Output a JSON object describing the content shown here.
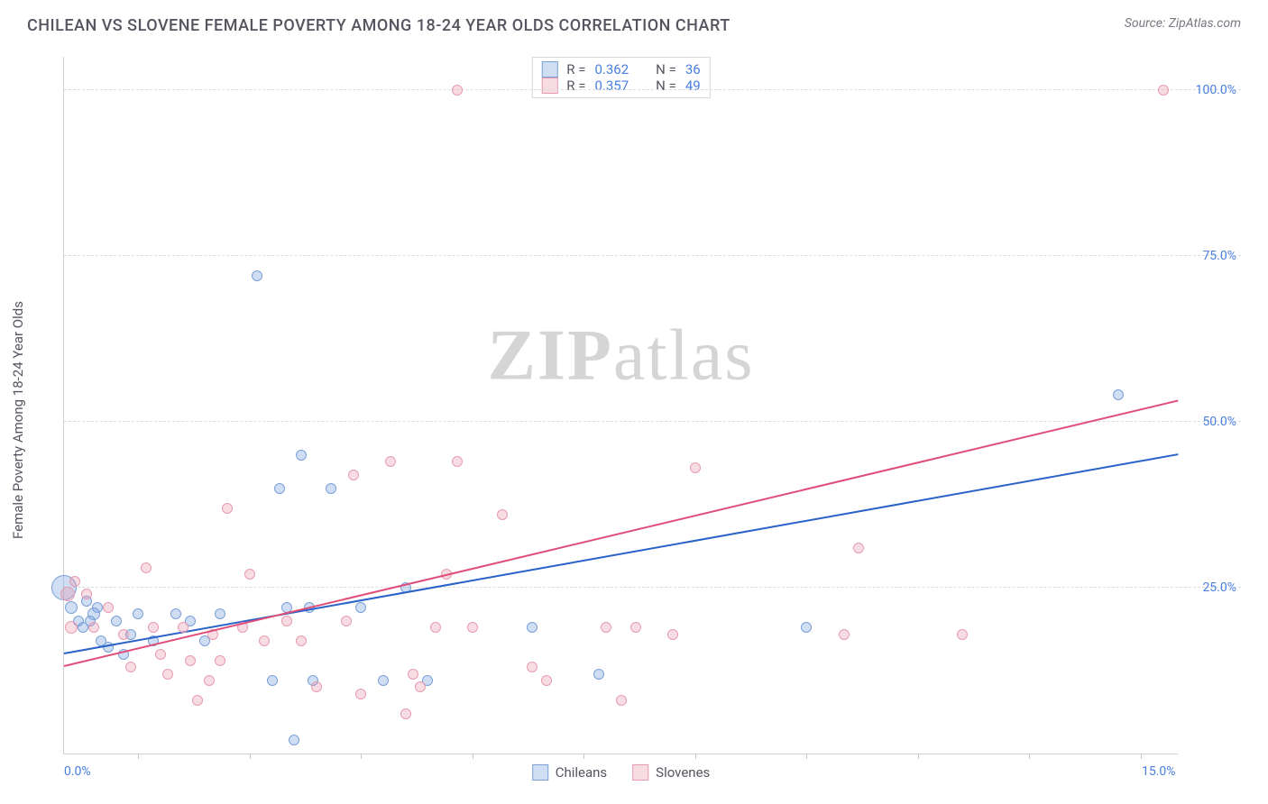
{
  "header": {
    "title": "CHILEAN VS SLOVENE FEMALE POVERTY AMONG 18-24 YEAR OLDS CORRELATION CHART",
    "source": "Source: ZipAtlas.com"
  },
  "chart": {
    "type": "scatter",
    "ylabel": "Female Poverty Among 18-24 Year Olds",
    "watermark_a": "ZIP",
    "watermark_b": "atlas",
    "background_color": "#ffffff",
    "grid_color": "#dcdcdc",
    "axis_color": "#d0d0d0",
    "xlim": [
      0,
      15
    ],
    "ylim": [
      0,
      105
    ],
    "x_ticks": [
      1,
      2.5,
      4,
      5.5,
      7,
      8.5,
      10,
      11.5,
      13,
      14.5
    ],
    "x_axis_labels": [
      {
        "x": 0,
        "text": "0.0%"
      },
      {
        "x": 15,
        "text": "15.0%"
      }
    ],
    "y_gridlines": [
      25,
      50,
      75,
      100
    ],
    "y_tick_labels": [
      "25.0%",
      "50.0%",
      "75.0%",
      "100.0%"
    ],
    "series": [
      {
        "name": "Chileans",
        "fill": "rgba(120,160,220,0.35)",
        "stroke": "#7aa0d8",
        "trend_color": "#2a62c7",
        "trend": {
          "x1": 0,
          "y1": 15,
          "x2": 15,
          "y2": 45
        },
        "points": [
          {
            "x": 0.0,
            "y": 25,
            "r": 14
          },
          {
            "x": 0.1,
            "y": 22,
            "r": 7
          },
          {
            "x": 0.2,
            "y": 20,
            "r": 6
          },
          {
            "x": 0.25,
            "y": 19,
            "r": 6
          },
          {
            "x": 0.3,
            "y": 23,
            "r": 6
          },
          {
            "x": 0.35,
            "y": 20,
            "r": 6
          },
          {
            "x": 0.4,
            "y": 21,
            "r": 7
          },
          {
            "x": 0.45,
            "y": 22,
            "r": 6
          },
          {
            "x": 0.5,
            "y": 17,
            "r": 6
          },
          {
            "x": 0.6,
            "y": 16,
            "r": 6
          },
          {
            "x": 0.7,
            "y": 20,
            "r": 6
          },
          {
            "x": 0.8,
            "y": 15,
            "r": 6
          },
          {
            "x": 0.9,
            "y": 18,
            "r": 6
          },
          {
            "x": 1.0,
            "y": 21,
            "r": 6
          },
          {
            "x": 1.2,
            "y": 17,
            "r": 6
          },
          {
            "x": 1.5,
            "y": 21,
            "r": 6
          },
          {
            "x": 1.7,
            "y": 20,
            "r": 6
          },
          {
            "x": 1.9,
            "y": 17,
            "r": 6
          },
          {
            "x": 2.1,
            "y": 21,
            "r": 6
          },
          {
            "x": 2.6,
            "y": 72,
            "r": 6
          },
          {
            "x": 2.8,
            "y": 11,
            "r": 6
          },
          {
            "x": 2.9,
            "y": 40,
            "r": 6
          },
          {
            "x": 3.0,
            "y": 22,
            "r": 6
          },
          {
            "x": 3.1,
            "y": 2,
            "r": 6
          },
          {
            "x": 3.2,
            "y": 45,
            "r": 6
          },
          {
            "x": 3.3,
            "y": 22,
            "r": 6
          },
          {
            "x": 3.35,
            "y": 11,
            "r": 6
          },
          {
            "x": 3.6,
            "y": 40,
            "r": 6
          },
          {
            "x": 4.0,
            "y": 22,
            "r": 6
          },
          {
            "x": 4.3,
            "y": 11,
            "r": 6
          },
          {
            "x": 4.6,
            "y": 25,
            "r": 6
          },
          {
            "x": 4.9,
            "y": 11,
            "r": 6
          },
          {
            "x": 6.3,
            "y": 19,
            "r": 6
          },
          {
            "x": 7.2,
            "y": 12,
            "r": 6
          },
          {
            "x": 10.0,
            "y": 19,
            "r": 6
          },
          {
            "x": 14.2,
            "y": 54,
            "r": 6
          }
        ]
      },
      {
        "name": "Slovenes",
        "fill": "rgba(232,140,165,0.30)",
        "stroke": "#e89bb0",
        "trend_color": "#e04d78",
        "trend": {
          "x1": 0,
          "y1": 13,
          "x2": 15,
          "y2": 53
        },
        "points": [
          {
            "x": 0.05,
            "y": 24,
            "r": 8
          },
          {
            "x": 0.1,
            "y": 19,
            "r": 7
          },
          {
            "x": 0.15,
            "y": 26,
            "r": 6
          },
          {
            "x": 0.3,
            "y": 24,
            "r": 6
          },
          {
            "x": 0.4,
            "y": 19,
            "r": 6
          },
          {
            "x": 0.6,
            "y": 22,
            "r": 6
          },
          {
            "x": 0.8,
            "y": 18,
            "r": 6
          },
          {
            "x": 0.9,
            "y": 13,
            "r": 6
          },
          {
            "x": 1.1,
            "y": 28,
            "r": 6
          },
          {
            "x": 1.2,
            "y": 19,
            "r": 6
          },
          {
            "x": 1.3,
            "y": 15,
            "r": 6
          },
          {
            "x": 1.4,
            "y": 12,
            "r": 6
          },
          {
            "x": 1.6,
            "y": 19,
            "r": 6
          },
          {
            "x": 1.7,
            "y": 14,
            "r": 6
          },
          {
            "x": 1.8,
            "y": 8,
            "r": 6
          },
          {
            "x": 1.95,
            "y": 11,
            "r": 6
          },
          {
            "x": 2.0,
            "y": 18,
            "r": 6
          },
          {
            "x": 2.1,
            "y": 14,
            "r": 6
          },
          {
            "x": 2.2,
            "y": 37,
            "r": 6
          },
          {
            "x": 2.4,
            "y": 19,
            "r": 6
          },
          {
            "x": 2.5,
            "y": 27,
            "r": 6
          },
          {
            "x": 2.7,
            "y": 17,
            "r": 6
          },
          {
            "x": 3.0,
            "y": 20,
            "r": 6
          },
          {
            "x": 3.2,
            "y": 17,
            "r": 6
          },
          {
            "x": 3.4,
            "y": 10,
            "r": 6
          },
          {
            "x": 3.8,
            "y": 20,
            "r": 6
          },
          {
            "x": 3.9,
            "y": 42,
            "r": 6
          },
          {
            "x": 4.0,
            "y": 9,
            "r": 6
          },
          {
            "x": 4.4,
            "y": 44,
            "r": 6
          },
          {
            "x": 4.6,
            "y": 6,
            "r": 6
          },
          {
            "x": 4.7,
            "y": 12,
            "r": 6
          },
          {
            "x": 4.8,
            "y": 10,
            "r": 6
          },
          {
            "x": 5.0,
            "y": 19,
            "r": 6
          },
          {
            "x": 5.15,
            "y": 27,
            "r": 6
          },
          {
            "x": 5.3,
            "y": 44,
            "r": 6
          },
          {
            "x": 5.3,
            "y": 100,
            "r": 6
          },
          {
            "x": 5.5,
            "y": 19,
            "r": 6
          },
          {
            "x": 5.9,
            "y": 36,
            "r": 6
          },
          {
            "x": 6.3,
            "y": 13,
            "r": 6
          },
          {
            "x": 6.5,
            "y": 11,
            "r": 6
          },
          {
            "x": 7.3,
            "y": 19,
            "r": 6
          },
          {
            "x": 7.5,
            "y": 8,
            "r": 6
          },
          {
            "x": 7.7,
            "y": 19,
            "r": 6
          },
          {
            "x": 8.2,
            "y": 18,
            "r": 6
          },
          {
            "x": 8.5,
            "y": 43,
            "r": 6
          },
          {
            "x": 10.5,
            "y": 18,
            "r": 6
          },
          {
            "x": 10.7,
            "y": 31,
            "r": 6
          },
          {
            "x": 12.1,
            "y": 18,
            "r": 6
          },
          {
            "x": 14.8,
            "y": 100,
            "r": 6
          }
        ]
      }
    ],
    "rn_legend": [
      {
        "series": 0,
        "r_label": "R =",
        "r": "0.362",
        "n_label": "N =",
        "n": "36"
      },
      {
        "series": 1,
        "r_label": "R =",
        "r": "0.357",
        "n_label": "N =",
        "n": "49"
      }
    ],
    "bottom_legend": [
      {
        "series": 0,
        "label": "Chileans"
      },
      {
        "series": 1,
        "label": "Slovenes"
      }
    ]
  }
}
